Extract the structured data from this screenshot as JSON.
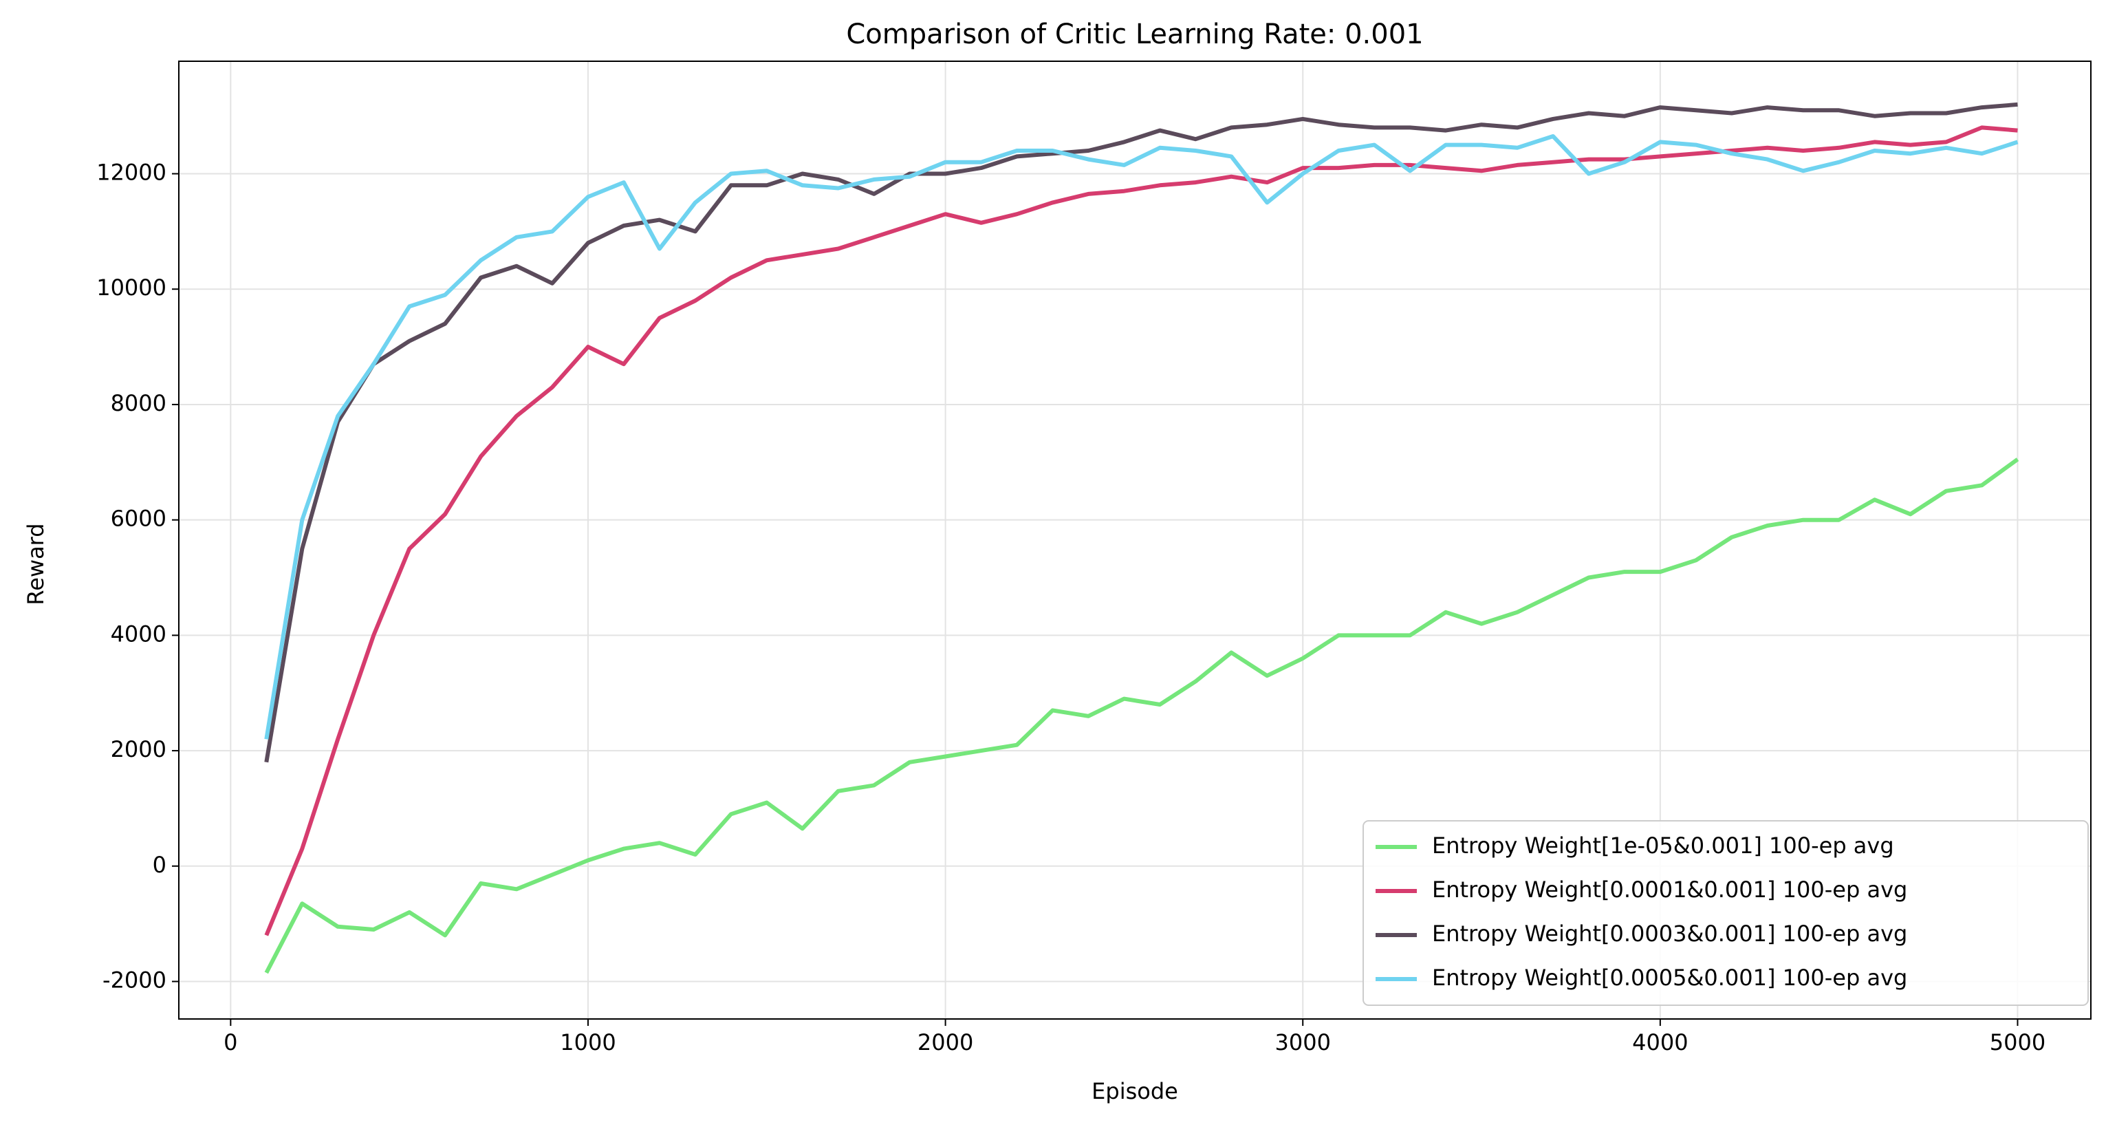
{
  "chart_data": {
    "type": "line",
    "title": "Comparison of Critic Learning Rate: 0.001",
    "x_label": "Episode",
    "y_label": "Reward",
    "x": [
      100,
      200,
      300,
      400,
      500,
      600,
      700,
      800,
      900,
      1000,
      1100,
      1200,
      1300,
      1400,
      1500,
      1600,
      1700,
      1800,
      1900,
      2000,
      2100,
      2200,
      2300,
      2400,
      2500,
      2600,
      2700,
      2800,
      2900,
      3000,
      3100,
      3200,
      3300,
      3400,
      3500,
      3600,
      3700,
      3800,
      3900,
      4000,
      4100,
      4200,
      4300,
      4400,
      4500,
      4600,
      4700,
      4800,
      4900,
      5000
    ],
    "series": [
      {
        "name": "Entropy Weight[1e-05&0.001] 100-ep avg",
        "color": "#75e67b",
        "values": [
          -1850,
          -650,
          -1050,
          -1100,
          -800,
          -1200,
          -300,
          -400,
          -150,
          100,
          300,
          400,
          200,
          900,
          1100,
          650,
          1300,
          1400,
          1800,
          1900,
          2000,
          2100,
          2700,
          2600,
          2900,
          2800,
          3200,
          3700,
          3300,
          3600,
          4000,
          4000,
          4000,
          4400,
          4200,
          4400,
          4700,
          5000,
          5100,
          5100,
          5300,
          5700,
          5900,
          6000,
          6000,
          6350,
          6100,
          6500,
          6600,
          7050
        ]
      },
      {
        "name": "Entropy Weight[0.0001&0.001] 100-ep avg",
        "color": "#d63c6e",
        "values": [
          -1200,
          300,
          2200,
          4000,
          5500,
          6100,
          7100,
          7800,
          8300,
          9000,
          8700,
          9500,
          9800,
          10200,
          10500,
          10600,
          10700,
          10900,
          11100,
          11300,
          11150,
          11300,
          11500,
          11650,
          11700,
          11800,
          11850,
          11950,
          11850,
          12100,
          12100,
          12150,
          12150,
          12100,
          12050,
          12150,
          12200,
          12250,
          12250,
          12300,
          12350,
          12400,
          12450,
          12400,
          12450,
          12550,
          12500,
          12550,
          12800,
          12750
        ]
      },
      {
        "name": "Entropy Weight[0.0003&0.001] 100-ep avg",
        "color": "#5b4b5b",
        "values": [
          1800,
          5500,
          7700,
          8700,
          9100,
          9400,
          10200,
          10400,
          10100,
          10800,
          11100,
          11200,
          11000,
          11800,
          11800,
          12000,
          11900,
          11650,
          12000,
          12000,
          12100,
          12300,
          12350,
          12400,
          12550,
          12750,
          12600,
          12800,
          12850,
          12950,
          12850,
          12800,
          12800,
          12750,
          12850,
          12800,
          12950,
          13050,
          13000,
          13150,
          13100,
          13050,
          13150,
          13100,
          13100,
          13000,
          13050,
          13050,
          13150,
          13200
        ]
      },
      {
        "name": "Entropy Weight[0.0005&0.001] 100-ep avg",
        "color": "#6fd3f0",
        "values": [
          2200,
          6000,
          7800,
          8700,
          9700,
          9900,
          10500,
          10900,
          11000,
          11600,
          11850,
          10700,
          11500,
          12000,
          12050,
          11800,
          11750,
          11900,
          11950,
          12200,
          12200,
          12400,
          12400,
          12250,
          12150,
          12450,
          12400,
          12300,
          11500,
          12000,
          12400,
          12500,
          12050,
          12500,
          12500,
          12450,
          12650,
          12000,
          12200,
          12550,
          12500,
          12350,
          12250,
          12050,
          12200,
          12400,
          12350,
          12450,
          12350,
          12550
        ]
      }
    ],
    "xlim": [
      -145,
      5205
    ],
    "ylim": [
      -2650,
      13950
    ],
    "xticks": [
      0,
      1000,
      2000,
      3000,
      4000,
      5000
    ],
    "yticks": [
      -2000,
      0,
      2000,
      4000,
      6000,
      8000,
      10000,
      12000
    ],
    "grid": true,
    "legend": "lower right"
  }
}
